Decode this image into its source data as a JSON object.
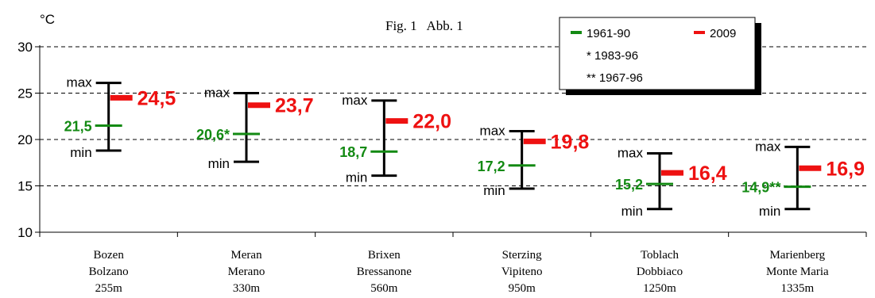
{
  "figure_label": "Fig. 1   Abb. 1",
  "y_unit": "°C",
  "legend": {
    "series_old": "1961-90",
    "series_new": "2009",
    "note1": "* 1983-96",
    "note2": "** 1967-96"
  },
  "colors": {
    "old": "#138a13",
    "new": "#ee1111",
    "bar": "#000000"
  },
  "chart_data": {
    "type": "errorbar",
    "ylim": [
      10,
      30
    ],
    "yticks": [
      10,
      15,
      20,
      25,
      30
    ],
    "grid": "horizontal dashed",
    "legend_position": "top-right",
    "min_label": "min",
    "max_label": "max",
    "stations": [
      {
        "line1": "Bozen",
        "line2": "Bolzano",
        "line3": "255m",
        "min": 18.8,
        "max": 26.1,
        "mean_1961_90": 21.5,
        "mean_1961_90_label": "21,5",
        "value_2009": 24.5,
        "value_2009_label": "24,5"
      },
      {
        "line1": "Meran",
        "line2": "Merano",
        "line3": "330m",
        "min": 17.6,
        "max": 25.0,
        "mean_1961_90": 20.6,
        "mean_1961_90_label": "20,6*",
        "value_2009": 23.7,
        "value_2009_label": "23,7"
      },
      {
        "line1": "Brixen",
        "line2": "Bressanone",
        "line3": "560m",
        "min": 16.1,
        "max": 24.2,
        "mean_1961_90": 18.7,
        "mean_1961_90_label": "18,7",
        "value_2009": 22.0,
        "value_2009_label": "22,0"
      },
      {
        "line1": "Sterzing",
        "line2": "Vipiteno",
        "line3": "950m",
        "min": 14.7,
        "max": 20.9,
        "mean_1961_90": 17.2,
        "mean_1961_90_label": "17,2",
        "value_2009": 19.8,
        "value_2009_label": "19,8"
      },
      {
        "line1": "Toblach",
        "line2": "Dobbiaco",
        "line3": "1250m",
        "min": 12.5,
        "max": 18.5,
        "mean_1961_90": 15.2,
        "mean_1961_90_label": "15,2",
        "value_2009": 16.4,
        "value_2009_label": "16,4"
      },
      {
        "line1": "Marienberg",
        "line2": "Monte Maria",
        "line3": "1335m",
        "min": 12.5,
        "max": 19.2,
        "mean_1961_90": 14.9,
        "mean_1961_90_label": "14,9**",
        "value_2009": 16.9,
        "value_2009_label": "16,9"
      }
    ]
  }
}
